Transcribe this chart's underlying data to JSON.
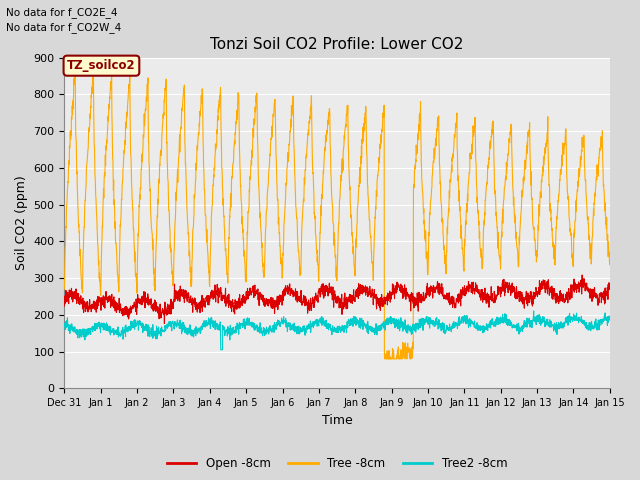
{
  "title": "Tonzi Soil CO2 Profile: Lower CO2",
  "xlabel": "Time",
  "ylabel": "Soil CO2 (ppm)",
  "top_left_notes": [
    "No data for f_CO2E_4",
    "No data for f_CO2W_4"
  ],
  "inset_label": "TZ_soilco2",
  "ylim": [
    0,
    900
  ],
  "yticks": [
    0,
    100,
    200,
    300,
    400,
    500,
    600,
    700,
    800,
    900
  ],
  "xtick_labels": [
    "Dec 31",
    "Jan 1",
    "Jan 2",
    "Jan 3",
    "Jan 4",
    "Jan 5",
    "Jan 6",
    "Jan 7",
    "Jan 8",
    "Jan 9",
    "Jan 10",
    "Jan 11",
    "Jan 12",
    "Jan 13",
    "Jan 14",
    "Jan 15"
  ],
  "legend_labels": [
    "Open -8cm",
    "Tree -8cm",
    "Tree2 -8cm"
  ],
  "open_color": "#dd0000",
  "tree_color": "#ffaa00",
  "tree2_color": "#00cccc",
  "bg_color": "#d8d8d8",
  "plot_bg": "#ebebeb",
  "grid_color": "#ffffff",
  "title_fontsize": 11,
  "axis_fontsize": 9,
  "tick_fontsize": 8,
  "inset_color": "#8b0000",
  "inset_bg": "#fffacd",
  "inset_edge": "#8b0000"
}
